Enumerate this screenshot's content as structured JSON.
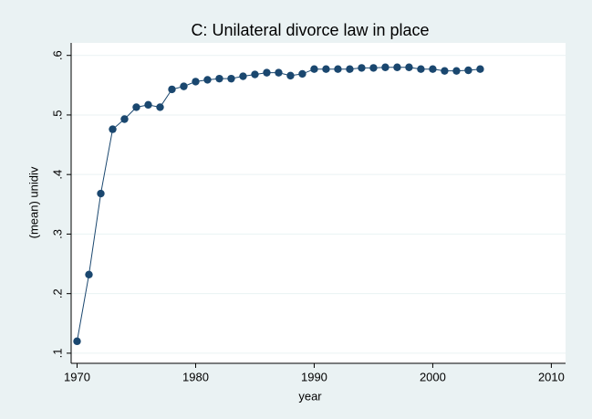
{
  "chart_data": {
    "type": "line",
    "title": "C: Unilateral divorce law in place",
    "x_label": "year",
    "y_label": "(mean) unidiv",
    "x": [
      1970,
      1971,
      1972,
      1973,
      1974,
      1975,
      1976,
      1977,
      1978,
      1979,
      1980,
      1981,
      1982,
      1983,
      1984,
      1985,
      1986,
      1987,
      1988,
      1989,
      1990,
      1991,
      1992,
      1993,
      1994,
      1995,
      1996,
      1997,
      1998,
      1999,
      2000,
      2001,
      2002,
      2003,
      2004
    ],
    "series": [
      {
        "name": "unidiv",
        "color": "#1a476f",
        "values": [
          0.12,
          0.232,
          0.368,
          0.476,
          0.493,
          0.513,
          0.517,
          0.513,
          0.543,
          0.548,
          0.556,
          0.559,
          0.561,
          0.561,
          0.565,
          0.568,
          0.571,
          0.571,
          0.566,
          0.569,
          0.577,
          0.577,
          0.577,
          0.577,
          0.579,
          0.579,
          0.58,
          0.58,
          0.58,
          0.577,
          0.577,
          0.574,
          0.574,
          0.575,
          0.577
        ]
      }
    ],
    "xlim": [
      1969.5,
      2011.2
    ],
    "xticks": [
      1970,
      1980,
      1990,
      2000,
      2010
    ],
    "ylim": [
      0.083,
      0.621
    ],
    "yticks": [
      {
        "value": 0.1,
        "label": ".1"
      },
      {
        "value": 0.2,
        "label": ".2"
      },
      {
        "value": 0.3,
        "label": ".3"
      },
      {
        "value": 0.4,
        "label": ".4"
      },
      {
        "value": 0.5,
        "label": ".5"
      },
      {
        "value": 0.6,
        "label": ".6"
      }
    ],
    "grid": true
  }
}
